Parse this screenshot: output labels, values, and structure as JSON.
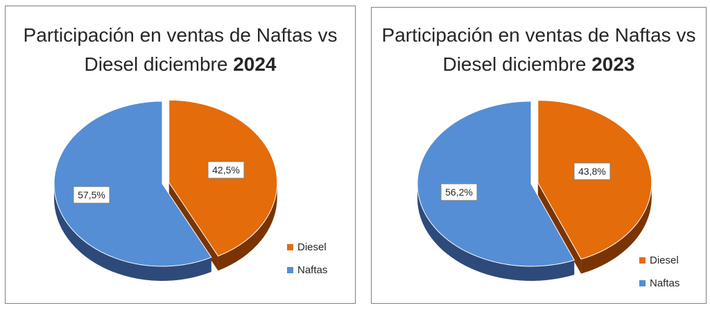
{
  "colors": {
    "diesel": "#E46C0A",
    "diesel_side": "#7A3404",
    "naftas": "#558ED5",
    "naftas_side": "#2E4A7A"
  },
  "chart_data": [
    {
      "type": "pie",
      "title": "Participación en ventas de Naftas vs Diesel diciembre 2024",
      "title_line1": "Participación en ventas de Naftas vs",
      "title_line2_prefix": "Diesel diciembre ",
      "title_year": "2024",
      "slices": [
        {
          "name": "Diesel",
          "value": 42.5,
          "label": "42,5%"
        },
        {
          "name": "Naftas",
          "value": 57.5,
          "label": "57,5%"
        }
      ],
      "legend": [
        "Diesel",
        "Naftas"
      ],
      "legend_position": "bottom-right",
      "exploded": "Diesel"
    },
    {
      "type": "pie",
      "title": "Participación en ventas de Naftas vs Diesel diciembre 2023",
      "title_line1": "Participación en ventas de Naftas vs",
      "title_line2_prefix": "Diesel diciembre ",
      "title_year": "2023",
      "slices": [
        {
          "name": "Diesel",
          "value": 43.8,
          "label": "43,8%"
        },
        {
          "name": "Naftas",
          "value": 56.2,
          "label": "56,2%"
        }
      ],
      "legend": [
        "Diesel",
        "Naftas"
      ],
      "legend_position": "bottom-right",
      "exploded": "Diesel"
    }
  ]
}
